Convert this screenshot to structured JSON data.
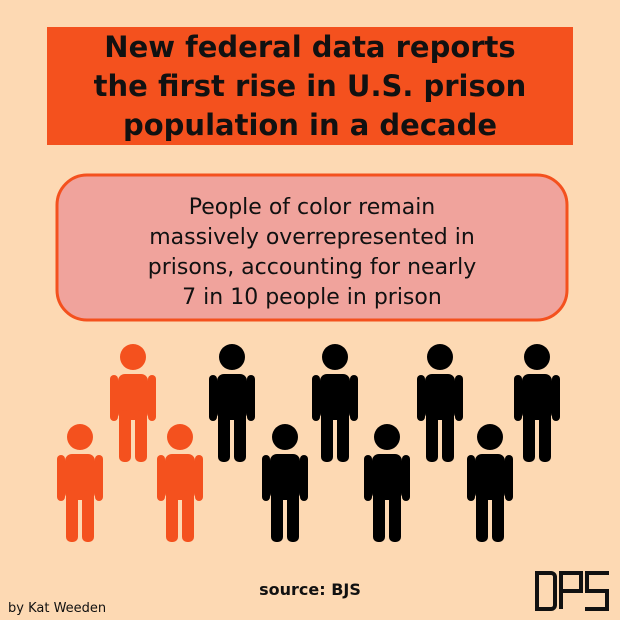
{
  "header": {
    "title_lines": [
      "New federal data reports",
      "the first rise in U.S. prison",
      "population in a decade"
    ]
  },
  "callout": {
    "lines": [
      "People of color remain",
      "massively overrepresented in",
      "prisons, accounting for nearly",
      "7 in 10 people in prison"
    ]
  },
  "source": "source: BJS",
  "byline": "by Kat Weeden"
}
